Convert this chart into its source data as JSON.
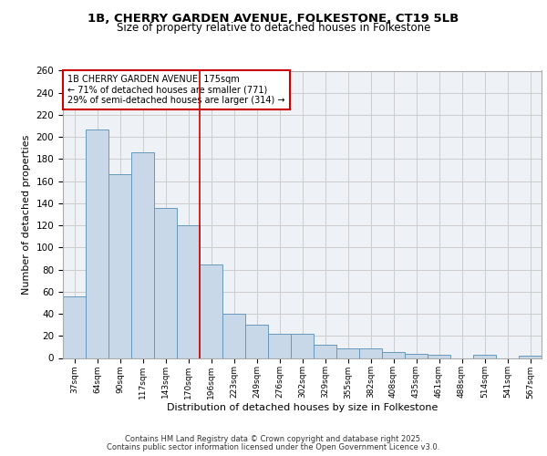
{
  "title_line1": "1B, CHERRY GARDEN AVENUE, FOLKESTONE, CT19 5LB",
  "title_line2": "Size of property relative to detached houses in Folkestone",
  "xlabel": "Distribution of detached houses by size in Folkestone",
  "ylabel": "Number of detached properties",
  "categories": [
    "37sqm",
    "64sqm",
    "90sqm",
    "117sqm",
    "143sqm",
    "170sqm",
    "196sqm",
    "223sqm",
    "249sqm",
    "276sqm",
    "302sqm",
    "329sqm",
    "355sqm",
    "382sqm",
    "408sqm",
    "435sqm",
    "461sqm",
    "488sqm",
    "514sqm",
    "541sqm",
    "567sqm"
  ],
  "values": [
    56,
    207,
    166,
    186,
    136,
    120,
    85,
    40,
    30,
    22,
    22,
    12,
    9,
    9,
    5,
    4,
    3,
    0,
    3,
    0,
    2
  ],
  "bar_color": "#c8d8e8",
  "bar_edge_color": "#6699bb",
  "reference_line_label": "1B CHERRY GARDEN AVENUE: 175sqm",
  "annotation_line2": "← 71% of detached houses are smaller (771)",
  "annotation_line3": "29% of semi-detached houses are larger (314) →",
  "annotation_box_color": "#cc0000",
  "vline_color": "#cc0000",
  "grid_color": "#cccccc",
  "background_color": "#eef2f7",
  "ylim": [
    0,
    260
  ],
  "yticks": [
    0,
    20,
    40,
    60,
    80,
    100,
    120,
    140,
    160,
    180,
    200,
    220,
    240,
    260
  ],
  "footer_line1": "Contains HM Land Registry data © Crown copyright and database right 2025.",
  "footer_line2": "Contains public sector information licensed under the Open Government Licence v3.0."
}
